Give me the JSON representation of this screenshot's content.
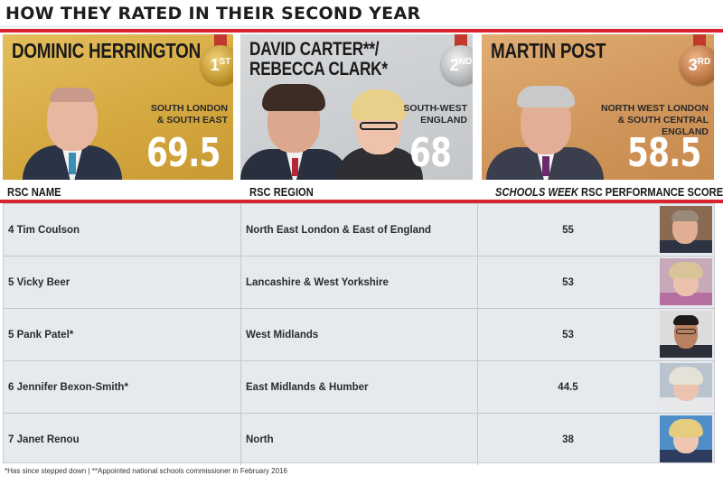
{
  "title": "HOW THEY RATED IN THEIR SECOND YEAR",
  "top3": [
    {
      "name_line1": "DOMINIC HERRINGTON",
      "name_line2": "",
      "rank": "1",
      "rank_suffix": "ST",
      "region_line1": "SOUTH LONDON",
      "region_line2": "& SOUTH EAST",
      "region_line3": "",
      "score": "69.5",
      "medal_color": "#c99a33"
    },
    {
      "name_line1": "DAVID CARTER**/",
      "name_line2": "REBECCA CLARK*",
      "rank": "2",
      "rank_suffix": "ND",
      "region_line1": "SOUTH-WEST",
      "region_line2": "ENGLAND",
      "region_line3": "",
      "score": "68",
      "medal_color": "#a8abae"
    },
    {
      "name_line1": "MARTIN POST",
      "name_line2": "",
      "rank": "3",
      "rank_suffix": "RD",
      "region_line1": "NORTH WEST LONDON",
      "region_line2": "& SOUTH CENTRAL",
      "region_line3": "ENGLAND",
      "score": "58.5",
      "medal_color": "#b06a34"
    }
  ],
  "columns": {
    "name": "RSC NAME",
    "region": "RSC REGION",
    "score_italic": "SCHOOLS WEEK",
    "score_rest": " RSC PERFORMANCE SCORE"
  },
  "rows": [
    {
      "name": "4 Tim Coulson",
      "region": "North East London & East of England",
      "score": "55"
    },
    {
      "name": "5 Vicky Beer",
      "region": "Lancashire & West Yorkshire",
      "score": "53"
    },
    {
      "name": "5 Pank Patel*",
      "region": "West Midlands",
      "score": "53"
    },
    {
      "name": "6 Jennifer Bexon-Smith*",
      "region": "East Midlands & Humber",
      "score": "44.5"
    },
    {
      "name": "7 Janet Renou",
      "region": "North",
      "score": "38"
    }
  ],
  "footnote": "*Has since stepped down | **Appointed national schools commissioner in February 2016",
  "colors": {
    "accent_red": "#d8242f",
    "gold": "#d4a73f",
    "silver": "#c4c7ca",
    "bronze": "#d0955a",
    "table_bg": "#e6e9ee"
  }
}
